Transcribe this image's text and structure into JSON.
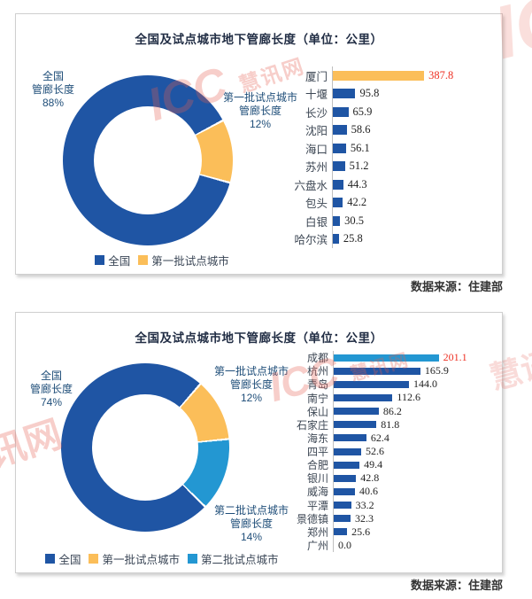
{
  "palette": {
    "blue": "#1f55a4",
    "orange": "#fbbe59",
    "lightblue": "#2397d2",
    "red": "#ee3124",
    "label_navy": "#1f4e79"
  },
  "watermark": {
    "brand": "ICC",
    "name": "慧讯网"
  },
  "chart_data": [
    {
      "type": "donut+bar",
      "title": "全国及试点城市地下管廊长度（单位：公里）",
      "source": "数据来源：住建部",
      "donut": {
        "start_angle": 62,
        "segments": [
          {
            "label": "第一批试点城市管廊长度",
            "pct": 12,
            "color_key": "orange"
          },
          {
            "label": "全国管廊长度",
            "pct": 88,
            "color_key": "blue"
          }
        ],
        "callouts": {
          "left": "全国\n管廊长度\n88%",
          "right_top": "第一批试点城市\n管廊长度\n12%"
        }
      },
      "legend": [
        {
          "label": "全国",
          "color_key": "blue"
        },
        {
          "label": "第一批试点城市",
          "color_key": "orange"
        }
      ],
      "bars": {
        "unit": "公里",
        "categories": [
          "厦门",
          "十堰",
          "长沙",
          "沈阳",
          "海口",
          "苏州",
          "六盘水",
          "包头",
          "白银",
          "哈尔滨"
        ],
        "values": [
          387.8,
          95.8,
          65.9,
          58.6,
          56.1,
          51.2,
          44.3,
          42.2,
          30.5,
          25.8
        ],
        "value_labels": [
          "387.8",
          "95.8",
          "65.9",
          "58.6",
          "56.1",
          "51.2",
          "44.3",
          "42.2",
          "30.5",
          "25.8"
        ],
        "bar_colors": [
          "orange",
          "blue",
          "blue",
          "blue",
          "blue",
          "blue",
          "blue",
          "blue",
          "blue",
          "blue"
        ],
        "value_label_colors": [
          "red",
          "default",
          "default",
          "default",
          "default",
          "default",
          "default",
          "default",
          "default",
          "default"
        ]
      }
    },
    {
      "type": "donut+bar",
      "title": "全国及试点城市地下管廊长度（单位：公里）",
      "source": "数据来源：住建部",
      "donut": {
        "start_angle": 41,
        "segments": [
          {
            "label": "第一批试点城市管廊长度",
            "pct": 12,
            "color_key": "orange"
          },
          {
            "label": "第二批试点城市管廊长度",
            "pct": 14,
            "color_key": "lightblue"
          },
          {
            "label": "全国管廊长度",
            "pct": 74,
            "color_key": "blue"
          }
        ],
        "callouts": {
          "left": "全国\n管廊长度\n74%",
          "right_top": "第一批试点城市\n管廊长度\n12%",
          "right_bottom": "第二批试点城市\n管廊长度\n14%"
        }
      },
      "legend": [
        {
          "label": "全国",
          "color_key": "blue"
        },
        {
          "label": "第一批试点城市",
          "color_key": "orange"
        },
        {
          "label": "第二批试点城市",
          "color_key": "lightblue"
        }
      ],
      "bars": {
        "unit": "公里",
        "categories": [
          "成都",
          "杭州",
          "青岛",
          "南宁",
          "保山",
          "石家庄",
          "海东",
          "四平",
          "合肥",
          "银川",
          "威海",
          "平潭",
          "景德镇",
          "郑州",
          "广州"
        ],
        "values": [
          201.1,
          165.9,
          144.0,
          112.6,
          86.2,
          81.8,
          62.4,
          52.6,
          49.4,
          42.8,
          40.6,
          33.2,
          32.3,
          25.6,
          0.0
        ],
        "value_labels": [
          "201.1",
          "165.9",
          "144.0",
          "112.6",
          "86.2",
          "81.8",
          "62.4",
          "52.6",
          "49.4",
          "42.8",
          "40.6",
          "33.2",
          "32.3",
          "25.6",
          "0.0"
        ],
        "bar_colors": [
          "lightblue",
          "blue",
          "blue",
          "blue",
          "blue",
          "blue",
          "blue",
          "blue",
          "blue",
          "blue",
          "blue",
          "blue",
          "blue",
          "blue",
          "blue"
        ],
        "value_label_colors": [
          "red",
          "default",
          "default",
          "default",
          "default",
          "default",
          "default",
          "default",
          "default",
          "default",
          "default",
          "default",
          "default",
          "default",
          "default"
        ]
      }
    }
  ]
}
